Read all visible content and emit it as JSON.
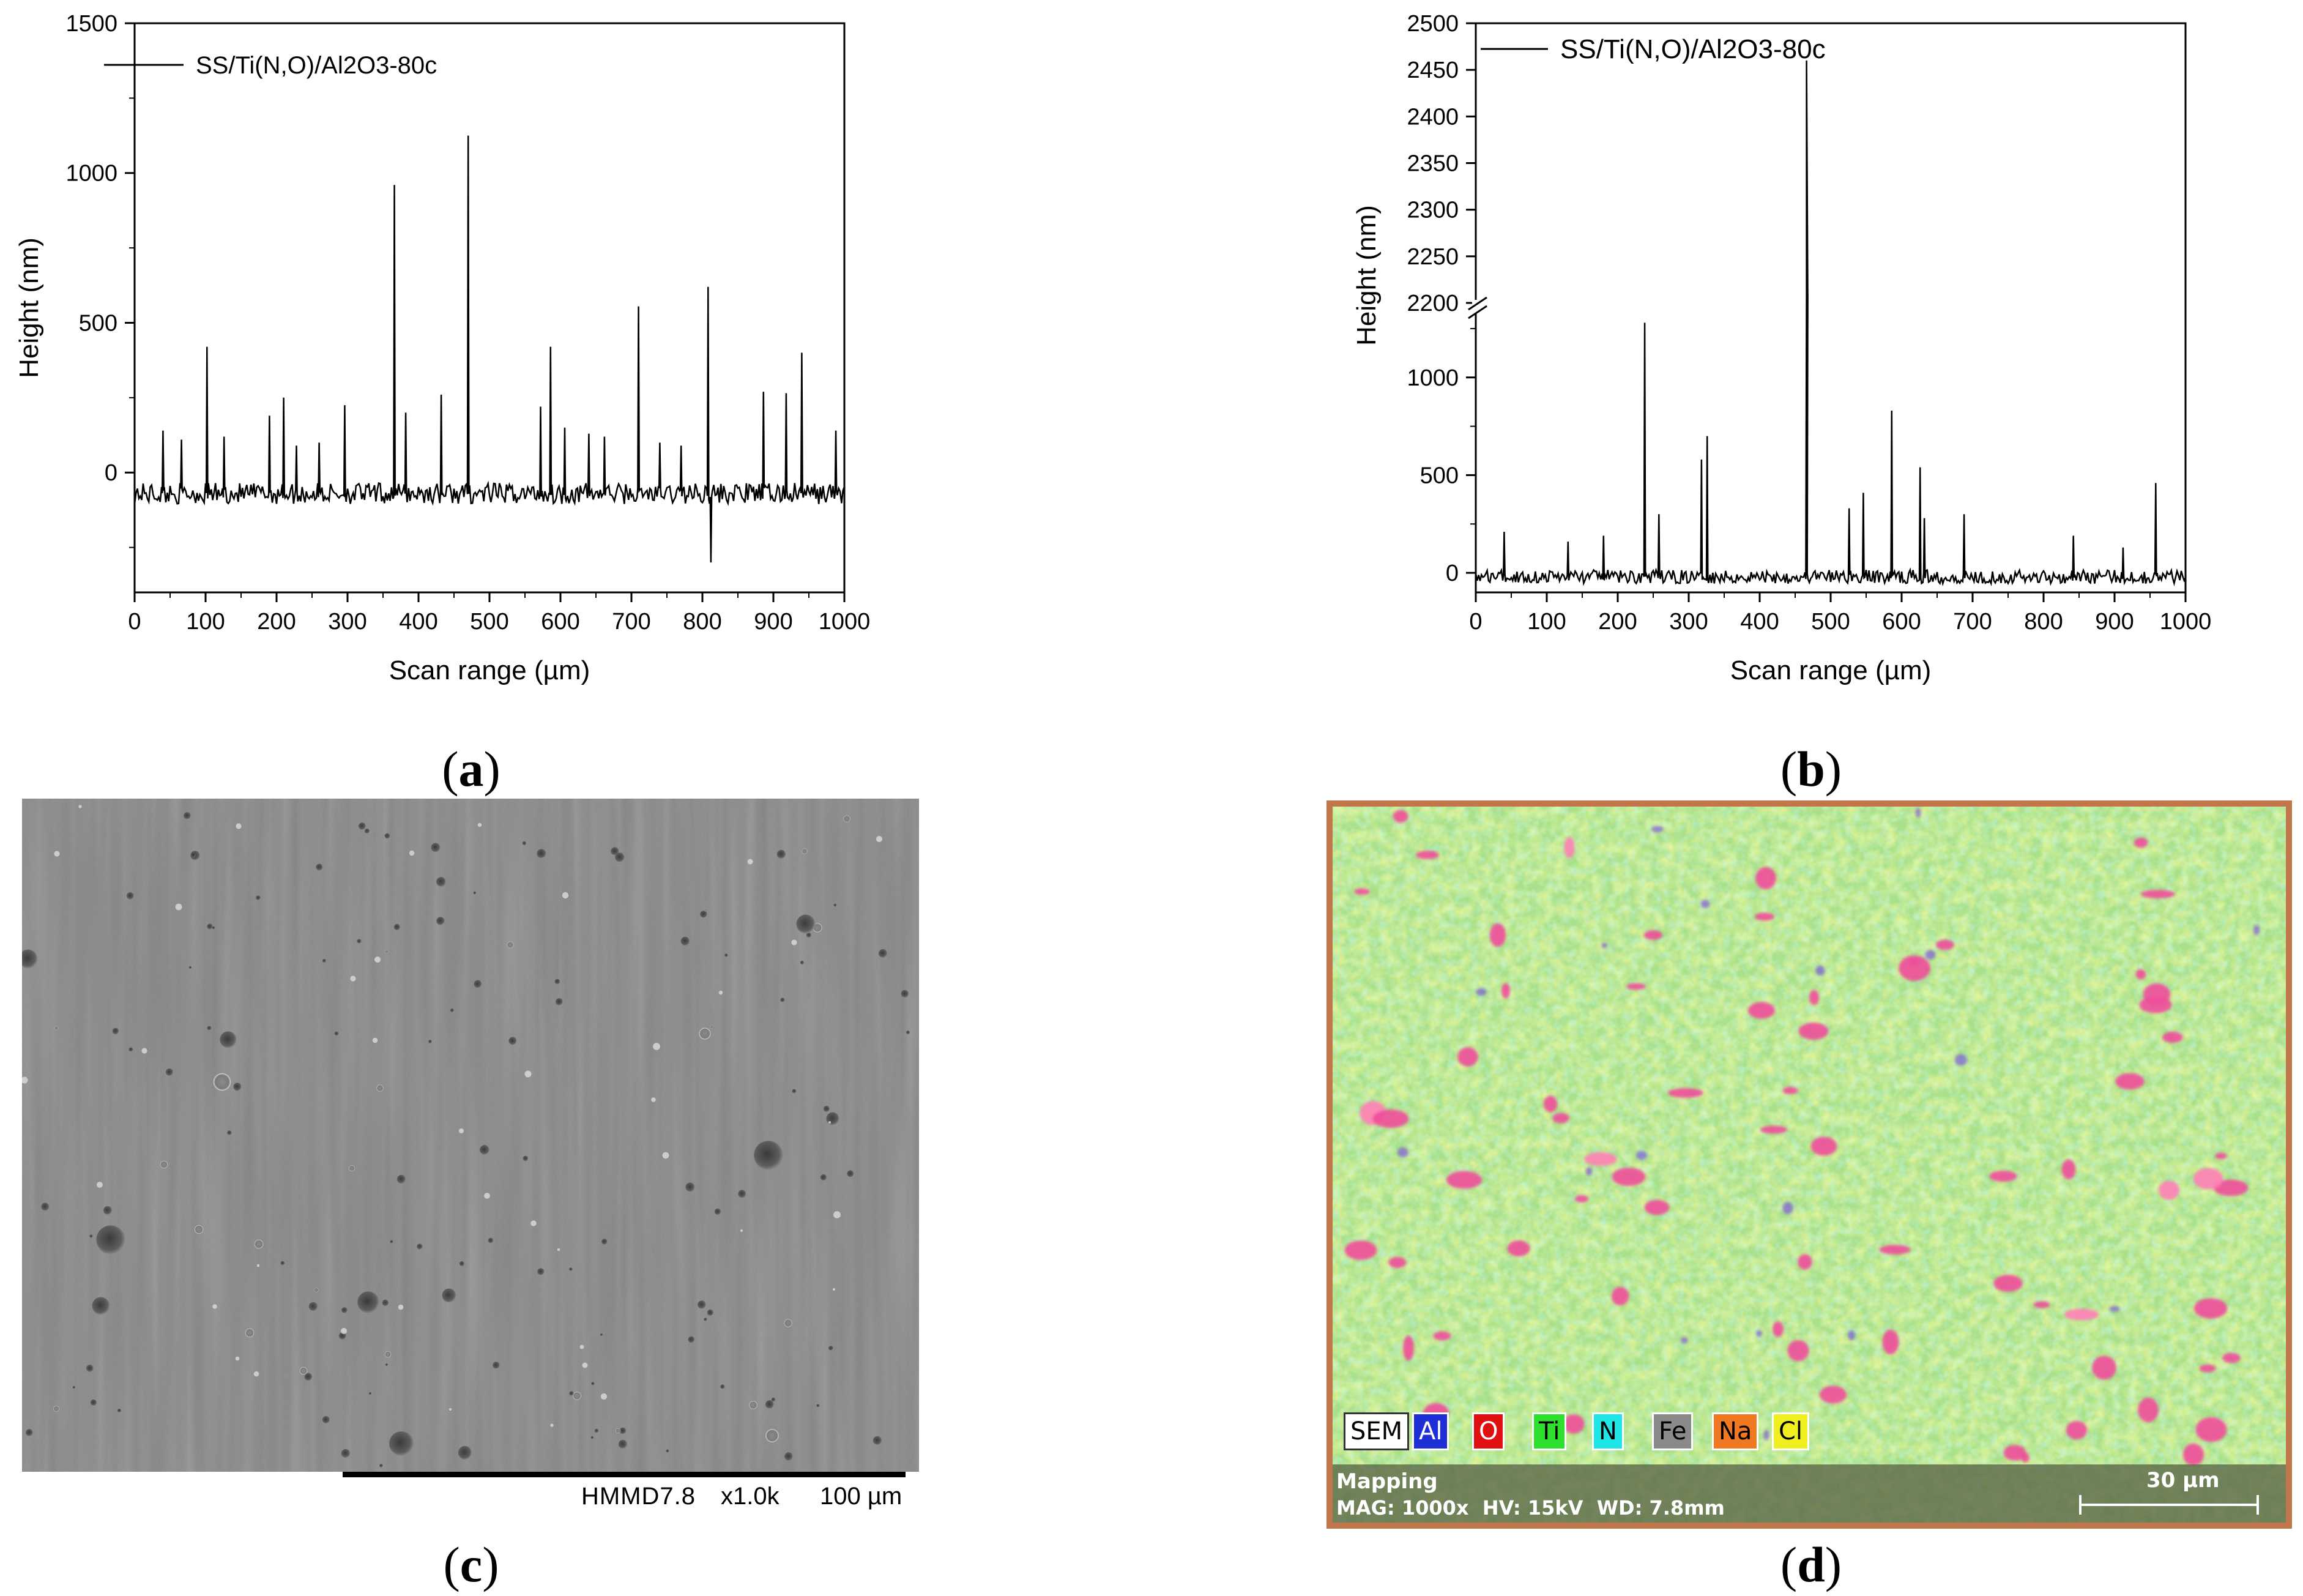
{
  "chart_data": [
    {
      "panel": "a",
      "type": "line",
      "legend": "SS/Ti(N,O)/Al2O3-80c",
      "xlabel": "Scan range (µm)",
      "ylabel": "Height (nm)",
      "xlim": [
        0,
        1000
      ],
      "ylim": [
        -400,
        1500
      ],
      "xticks": [
        0,
        100,
        200,
        300,
        400,
        500,
        600,
        700,
        800,
        900,
        1000
      ],
      "yticks": [
        0,
        500,
        1000,
        1500
      ],
      "baseline": -70,
      "peaks": [
        {
          "x": 40,
          "y": 140
        },
        {
          "x": 65,
          "y": 110
        },
        {
          "x": 102,
          "y": 420
        },
        {
          "x": 125,
          "y": 120
        },
        {
          "x": 190,
          "y": 190
        },
        {
          "x": 210,
          "y": 250
        },
        {
          "x": 228,
          "y": 90
        },
        {
          "x": 260,
          "y": 100
        },
        {
          "x": 295,
          "y": 225
        },
        {
          "x": 365,
          "y": 960
        },
        {
          "x": 382,
          "y": 200
        },
        {
          "x": 432,
          "y": 260
        },
        {
          "x": 470,
          "y": 1125
        },
        {
          "x": 572,
          "y": 220
        },
        {
          "x": 585,
          "y": 420
        },
        {
          "x": 605,
          "y": 150
        },
        {
          "x": 640,
          "y": 130
        },
        {
          "x": 662,
          "y": 120
        },
        {
          "x": 710,
          "y": 555
        },
        {
          "x": 740,
          "y": 100
        },
        {
          "x": 770,
          "y": 90
        },
        {
          "x": 808,
          "y": 620
        },
        {
          "x": 812,
          "y": -300
        },
        {
          "x": 885,
          "y": 270
        },
        {
          "x": 918,
          "y": 265
        },
        {
          "x": 940,
          "y": 400
        },
        {
          "x": 988,
          "y": 140
        }
      ]
    },
    {
      "panel": "b",
      "type": "line",
      "legend": "SS/Ti(N,O)/Al2O3-80c",
      "xlabel": "Scan range (µm)",
      "ylabel": "Height (nm)",
      "xlim": [
        0,
        1000
      ],
      "ylim_lower": [
        -100,
        1350
      ],
      "ylim_upper": [
        2200,
        2500
      ],
      "xticks": [
        0,
        100,
        200,
        300,
        400,
        500,
        600,
        700,
        800,
        900,
        1000
      ],
      "yticks_lower": [
        0,
        500,
        1000
      ],
      "yticks_upper": [
        2200,
        2250,
        2300,
        2350,
        2400,
        2450,
        2500
      ],
      "baseline": -20,
      "peaks": [
        {
          "x": 40,
          "y": 210
        },
        {
          "x": 130,
          "y": 160
        },
        {
          "x": 180,
          "y": 190
        },
        {
          "x": 237,
          "y": 1280
        },
        {
          "x": 258,
          "y": 300
        },
        {
          "x": 318,
          "y": 580
        },
        {
          "x": 325,
          "y": 700
        },
        {
          "x": 465,
          "y": 2460
        },
        {
          "x": 525,
          "y": 330
        },
        {
          "x": 545,
          "y": 410
        },
        {
          "x": 585,
          "y": 830
        },
        {
          "x": 625,
          "y": 540
        },
        {
          "x": 632,
          "y": 280
        },
        {
          "x": 688,
          "y": 300
        },
        {
          "x": 842,
          "y": 190
        },
        {
          "x": 912,
          "y": 130
        },
        {
          "x": 958,
          "y": 460
        }
      ]
    }
  ],
  "captions": {
    "a": "a",
    "b": "b",
    "c": "c",
    "d": "d"
  },
  "sem": {
    "bar_text": {
      "detector": "HMMD7.8",
      "mag": "x1.0k",
      "scale": "100 µm"
    }
  },
  "mapping": {
    "legend": [
      {
        "label": "SEM",
        "color": "#ffffff",
        "text": "#000000"
      },
      {
        "label": "Al",
        "color": "#1f2fd6",
        "text": "#ffffff"
      },
      {
        "label": "O",
        "color": "#e01010",
        "text": "#ffffff"
      },
      {
        "label": "Ti",
        "color": "#2ee02e",
        "text": "#000000"
      },
      {
        "label": "N",
        "color": "#1ee6e6",
        "text": "#000000"
      },
      {
        "label": "Fe",
        "color": "#8a8a8a",
        "text": "#000000"
      },
      {
        "label": "Na",
        "color": "#f07820",
        "text": "#000000"
      },
      {
        "label": "Cl",
        "color": "#f0f020",
        "text": "#000000"
      }
    ],
    "title": "Mapping",
    "params": "MAG: 1000x  HV: 15kV  WD: 7.8mm",
    "scale": "30 µm"
  }
}
